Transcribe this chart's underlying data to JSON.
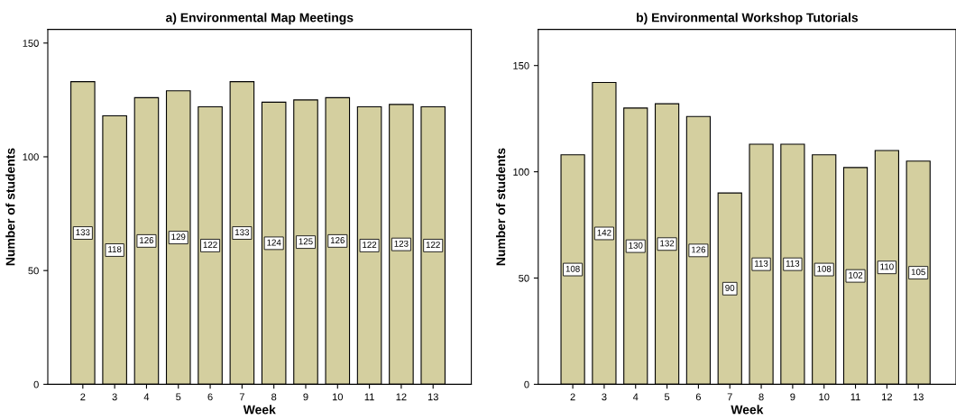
{
  "chart_data": [
    {
      "type": "bar",
      "title": "a) Environmental Map Meetings",
      "xlabel": "Week",
      "ylabel": "Number of students",
      "categories": [
        "2",
        "3",
        "4",
        "5",
        "6",
        "7",
        "8",
        "9",
        "10",
        "11",
        "12",
        "13"
      ],
      "values": [
        133,
        118,
        126,
        129,
        122,
        133,
        124,
        125,
        126,
        122,
        123,
        122
      ],
      "color": "#d4cf9f",
      "ylim": [
        0,
        156
      ],
      "yticks": [
        0,
        50,
        100,
        150
      ],
      "data_labels": true,
      "grid": false
    },
    {
      "type": "bar",
      "title": "b) Environmental Workshop Tutorials",
      "xlabel": "Week",
      "ylabel": "Number of students",
      "categories": [
        "2",
        "3",
        "4",
        "5",
        "6",
        "7",
        "8",
        "9",
        "10",
        "11",
        "12",
        "13"
      ],
      "values": [
        108,
        142,
        130,
        132,
        126,
        90,
        113,
        113,
        108,
        102,
        110,
        105
      ],
      "color": "#d4cf9f",
      "ylim": [
        0,
        167
      ],
      "yticks": [
        0,
        50,
        100,
        150
      ],
      "data_labels": true,
      "grid": false
    }
  ]
}
